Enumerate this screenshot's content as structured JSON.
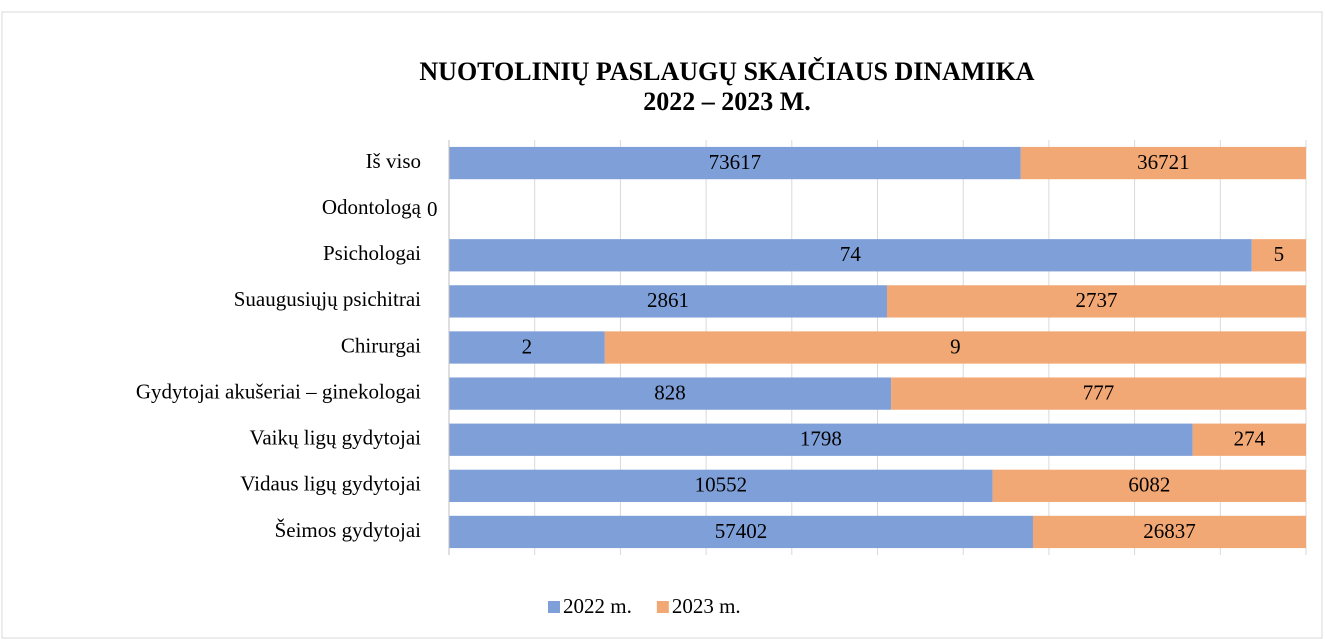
{
  "chart_data": {
    "type": "bar",
    "orientation": "horizontal",
    "stacked": "percent",
    "title": "NUOTOLINIŲ PASLAUGŲ SKAIČIAUS DINAMIKA",
    "subtitle": "2022 – 2023 M.",
    "categories": [
      "Iš viso",
      "Odontologą",
      "Psichologai",
      "Suaugusiųjų psichitrai",
      "Chirurgai",
      "Gydytojai akušeriai – ginekologai",
      "Vaikų ligų gydytojai",
      "Vidaus ligų gydytojai",
      "Šeimos gydytojai"
    ],
    "series": [
      {
        "name": "2022 m.",
        "color": "#7f9fd8",
        "values": [
          73617,
          0,
          74,
          2861,
          2,
          828,
          1798,
          10552,
          57402
        ]
      },
      {
        "name": "2023 m.",
        "color": "#f2a874",
        "values": [
          36721,
          0,
          5,
          2737,
          9,
          777,
          274,
          6082,
          26837
        ]
      }
    ],
    "grid": true,
    "legend": "bottom"
  }
}
